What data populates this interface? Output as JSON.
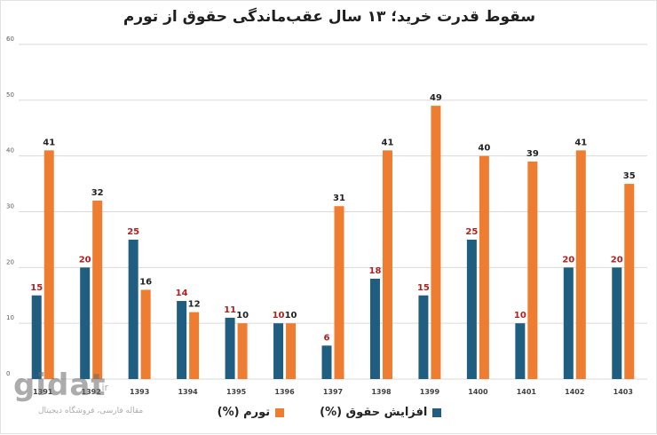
{
  "colors": {
    "salary": "#1f5e80",
    "inflation": "#ee7d31",
    "salary_label": "#b32020",
    "inflation_label": "#222222",
    "grid": "#d9d9d9",
    "axis_text": "#595959"
  },
  "chart_data": {
    "type": "bar",
    "title": "سقوط قدرت خرید؛ ۱۳ سال عقب‌ماندگی حقوق از تورم",
    "categories": [
      "1391",
      "1392",
      "1393",
      "1394",
      "1395",
      "1396",
      "1397",
      "1398",
      "1399",
      "1400",
      "1401",
      "1402",
      "1403"
    ],
    "series": [
      {
        "name": "افزایش حقوق (%)",
        "values": [
          15,
          20,
          25,
          14,
          11,
          10,
          6,
          18,
          15,
          25,
          10,
          20,
          20
        ]
      },
      {
        "name": "تورم (%)",
        "values": [
          41,
          32,
          16,
          12,
          10,
          10,
          31,
          41,
          49,
          40,
          39,
          41,
          35
        ]
      }
    ],
    "yticks": [
      0,
      10,
      20,
      30,
      40,
      50,
      60
    ],
    "ylim": [
      0,
      60
    ],
    "legend_position": "bottom-center",
    "grid": true
  },
  "watermark": {
    "brand": "gidat",
    "domain": ".ir",
    "tagline": "مقاله فارسی، فروشگاه دیجیتال"
  }
}
